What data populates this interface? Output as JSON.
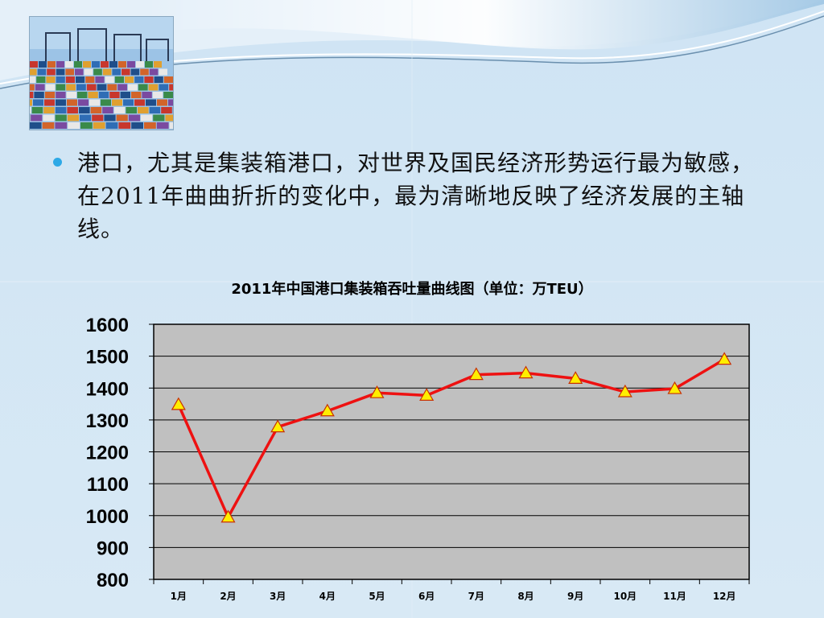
{
  "slide": {
    "bullet_text": "港口，尤其是集装箱港口，对世界及国民经济形势运行最为敏感，在2011年曲曲折折的变化中，最为清晰地反映了经济发展的主轴线。"
  },
  "chart_data": {
    "type": "line",
    "title": "2011年中国港口集装箱吞吐量曲线图（单位：万TEU）",
    "categories": [
      "1月",
      "2月",
      "3月",
      "4月",
      "5月",
      "6月",
      "7月",
      "8月",
      "9月",
      "10月",
      "11月",
      "12月"
    ],
    "series": [
      {
        "values": [
          1348,
          995,
          1278,
          1328,
          1385,
          1377,
          1442,
          1447,
          1430,
          1388,
          1398,
          1490
        ]
      }
    ],
    "ylim": [
      800,
      1600
    ],
    "yticks": [
      800,
      900,
      1000,
      1100,
      1200,
      1300,
      1400,
      1500,
      1600
    ],
    "grid": true,
    "line_color": "#ee1111",
    "marker": "triangle",
    "marker_color": "#ffee00",
    "plot_bg": "#c0c0c0",
    "legend": "none"
  }
}
